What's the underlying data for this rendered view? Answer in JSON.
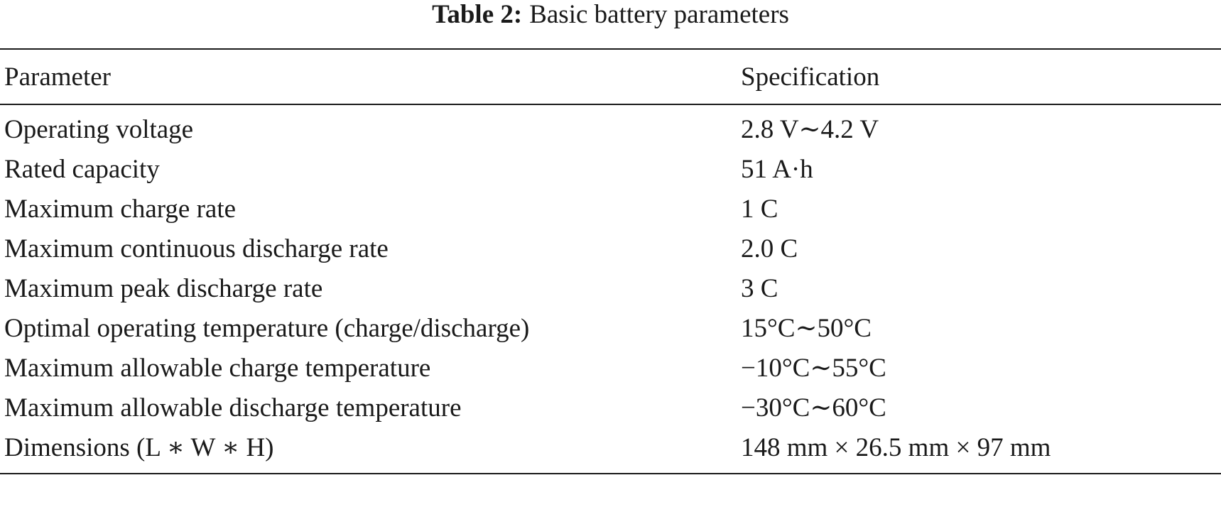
{
  "caption": {
    "label": "Table 2:",
    "title": "Basic battery parameters"
  },
  "table": {
    "headers": [
      "Parameter",
      "Specification"
    ],
    "rows": [
      [
        "Operating voltage",
        "2.8 V∼4.2 V"
      ],
      [
        "Rated capacity",
        "51 A·h"
      ],
      [
        "Maximum charge rate",
        "1 C"
      ],
      [
        "Maximum continuous discharge rate",
        "2.0 C"
      ],
      [
        "Maximum peak discharge rate",
        "3 C"
      ],
      [
        "Optimal operating temperature (charge/discharge)",
        "15°C∼50°C"
      ],
      [
        "Maximum allowable charge temperature",
        "−10°C∼55°C"
      ],
      [
        "Maximum allowable discharge temperature",
        "−30°C∼60°C"
      ],
      [
        "Dimensions (L ∗ W ∗ H)",
        "148 mm × 26.5 mm × 97 mm"
      ]
    ]
  }
}
